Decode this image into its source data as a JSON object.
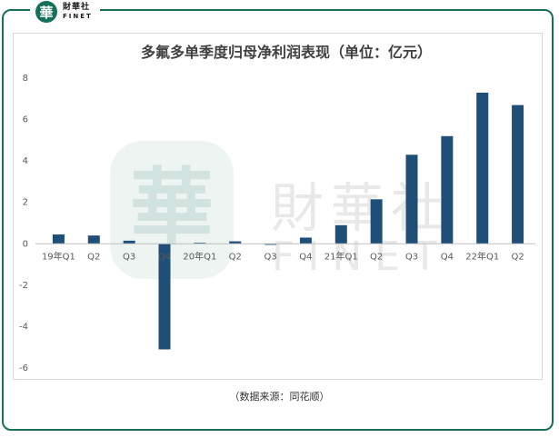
{
  "brand": {
    "logo_char": "華",
    "name_cn": "財華社",
    "name_en": "FINET"
  },
  "watermark": {
    "cn": "財華社",
    "en": "FINET"
  },
  "source_note": "（数据来源：同花顺）",
  "colors": {
    "bar": "#1f4e79",
    "frame": "#17705a",
    "axis": "#bfbfbf",
    "text": "#595959"
  },
  "chart_data": {
    "type": "bar",
    "title": "多氟多单季度归母净利润表现（单位：亿元）",
    "categories": [
      "19年Q1",
      "Q2",
      "Q3",
      "Q4",
      "20年Q1",
      "Q2",
      "Q3",
      "Q4",
      "21年Q1",
      "Q2",
      "Q3",
      "Q4",
      "22年Q1",
      "Q2"
    ],
    "values": [
      0.45,
      0.4,
      0.15,
      -5.1,
      0.05,
      0.12,
      -0.05,
      0.3,
      0.9,
      2.15,
      4.3,
      5.2,
      7.3,
      6.7
    ],
    "ylim": [
      -6,
      8
    ],
    "yticks": [
      8,
      6,
      4,
      2,
      0,
      -2,
      -4,
      -6
    ],
    "grid": false,
    "legend": "none"
  }
}
